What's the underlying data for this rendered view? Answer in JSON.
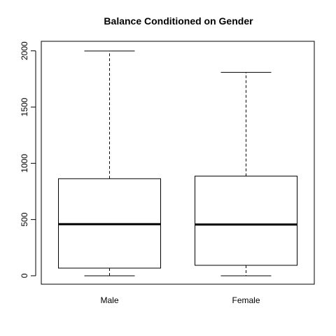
{
  "chart_data": {
    "type": "box",
    "title": "Balance Conditioned on Gender",
    "xlabel": "",
    "ylabel": "",
    "categories": [
      "Male",
      "Female"
    ],
    "boxes": [
      {
        "name": "Male",
        "min": 0,
        "q1": 68,
        "median": 459,
        "q3": 863,
        "max": 1999
      },
      {
        "name": "Female",
        "min": 0,
        "q1": 93,
        "median": 456,
        "q3": 886,
        "max": 1809
      }
    ],
    "ylim": [
      -75,
      2085
    ],
    "yticks": [
      0,
      500,
      1000,
      1500,
      2000
    ],
    "ytick_labels": [
      "0",
      "500",
      "1000",
      "1500",
      "2000"
    ],
    "grid": false,
    "legend": "none"
  }
}
